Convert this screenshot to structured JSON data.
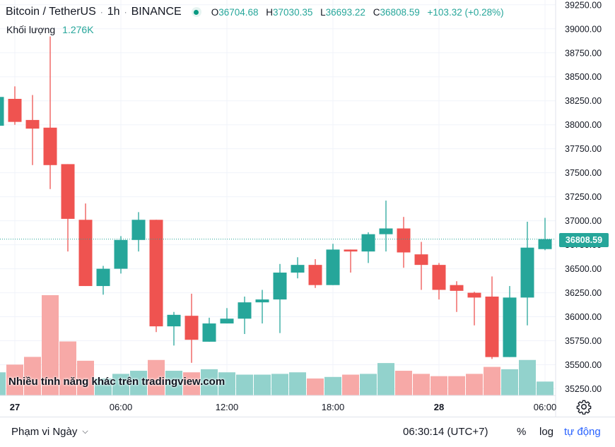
{
  "header": {
    "symbol": "Bitcoin / TetherUS",
    "sep1": "·",
    "interval": "1h",
    "sep2": "·",
    "exchange": "BINANCE",
    "open_key": "O",
    "open": "36704.68",
    "high_key": "H",
    "high": "37030.35",
    "low_key": "L",
    "low": "36693.22",
    "close_key": "C",
    "close": "36808.59",
    "change": "+103.32 (+0.28%)"
  },
  "volume_legend": {
    "label": "Khối lượng",
    "value": "1.276K"
  },
  "watermark": "Nhiều tính năng khác trên tradingview.com",
  "bottom_bar": {
    "range_label": "Phạm vi Ngày",
    "clock": "06:30:14 (UTC+7)",
    "percent_label": "%",
    "log_label": "log",
    "auto_label": "tự động"
  },
  "colors": {
    "up": "#26a69a",
    "down": "#ef5350",
    "up_volume": "#92d2cc",
    "down_volume": "#f7a9a7",
    "accent": "#2962ff"
  },
  "chart_data": {
    "type": "candlestick",
    "title": "",
    "price_axis": {
      "range": [
        35180,
        39300
      ],
      "ticks": [
        35250,
        35500,
        35750,
        36000,
        36250,
        36500,
        36750,
        37000,
        37250,
        37500,
        37750,
        38000,
        38250,
        38500,
        38750,
        39000,
        39250
      ],
      "tick_labels": [
        "35250.00",
        "35500.00",
        "35750.00",
        "36000.00",
        "36250.00",
        "36500.00",
        "36750.00",
        "37000.00",
        "37250.00",
        "37500.00",
        "37750.00",
        "38000.00",
        "38250.00",
        "38500.00",
        "38750.00",
        "39000.00",
        "39250.00"
      ],
      "last_price_label": "36808.59"
    },
    "time_axis": {
      "labels": [
        {
          "label": "27",
          "bar": 1,
          "bold": true
        },
        {
          "label": "06:00",
          "bar": 7,
          "bold": false
        },
        {
          "label": "12:00",
          "bar": 13,
          "bold": false
        },
        {
          "label": "18:00",
          "bar": 19,
          "bold": false
        },
        {
          "label": "28",
          "bar": 25,
          "bold": true
        },
        {
          "label": "06:00",
          "bar": 31,
          "bold": false
        }
      ]
    },
    "first_bar_index": 0,
    "candles": [
      {
        "o": 37990,
        "h": 38290,
        "l": 37990,
        "c": 38290,
        "v": 0.3
      },
      {
        "o": 38270,
        "h": 38400,
        "l": 38000,
        "c": 38030,
        "v": 0.4
      },
      {
        "o": 38050,
        "h": 38310,
        "l": 37580,
        "c": 37960,
        "v": 0.5
      },
      {
        "o": 37970,
        "h": 38920,
        "l": 37330,
        "c": 37580,
        "v": 1.3
      },
      {
        "o": 37590,
        "h": 37590,
        "l": 36680,
        "c": 37020,
        "v": 0.7
      },
      {
        "o": 37010,
        "h": 37180,
        "l": 36320,
        "c": 36320,
        "v": 0.45
      },
      {
        "o": 36320,
        "h": 36530,
        "l": 36230,
        "c": 36500,
        "v": 0.22
      },
      {
        "o": 36500,
        "h": 36840,
        "l": 36450,
        "c": 36800,
        "v": 0.28
      },
      {
        "o": 36800,
        "h": 37090,
        "l": 36680,
        "c": 37010,
        "v": 0.32
      },
      {
        "o": 37010,
        "h": 37010,
        "l": 35840,
        "c": 35900,
        "v": 0.46
      },
      {
        "o": 35900,
        "h": 36050,
        "l": 35700,
        "c": 36020,
        "v": 0.32
      },
      {
        "o": 36010,
        "h": 36240,
        "l": 35520,
        "c": 35760,
        "v": 0.3
      },
      {
        "o": 35740,
        "h": 35990,
        "l": 35740,
        "c": 35930,
        "v": 0.34
      },
      {
        "o": 35930,
        "h": 36090,
        "l": 35930,
        "c": 35980,
        "v": 0.3
      },
      {
        "o": 35980,
        "h": 36210,
        "l": 35820,
        "c": 36150,
        "v": 0.27
      },
      {
        "o": 36150,
        "h": 36280,
        "l": 35930,
        "c": 36180,
        "v": 0.27
      },
      {
        "o": 36180,
        "h": 36550,
        "l": 35830,
        "c": 36460,
        "v": 0.28
      },
      {
        "o": 36460,
        "h": 36620,
        "l": 36400,
        "c": 36540,
        "v": 0.3
      },
      {
        "o": 36540,
        "h": 36600,
        "l": 36300,
        "c": 36330,
        "v": 0.22
      },
      {
        "o": 36330,
        "h": 36760,
        "l": 36330,
        "c": 36700,
        "v": 0.24
      },
      {
        "o": 36700,
        "h": 36700,
        "l": 36460,
        "c": 36680,
        "v": 0.27
      },
      {
        "o": 36680,
        "h": 36880,
        "l": 36560,
        "c": 36860,
        "v": 0.28
      },
      {
        "o": 36860,
        "h": 37210,
        "l": 36680,
        "c": 36920,
        "v": 0.42
      },
      {
        "o": 36920,
        "h": 37040,
        "l": 36510,
        "c": 36670,
        "v": 0.32
      },
      {
        "o": 36650,
        "h": 36780,
        "l": 36280,
        "c": 36540,
        "v": 0.28
      },
      {
        "o": 36540,
        "h": 36560,
        "l": 36180,
        "c": 36280,
        "v": 0.25
      },
      {
        "o": 36330,
        "h": 36370,
        "l": 36050,
        "c": 36270,
        "v": 0.25
      },
      {
        "o": 36250,
        "h": 36260,
        "l": 35910,
        "c": 36200,
        "v": 0.28
      },
      {
        "o": 36210,
        "h": 36420,
        "l": 35560,
        "c": 35580,
        "v": 0.37
      },
      {
        "o": 35580,
        "h": 36320,
        "l": 35580,
        "c": 36200,
        "v": 0.34
      },
      {
        "o": 36200,
        "h": 36990,
        "l": 35910,
        "c": 36720,
        "v": 0.46
      },
      {
        "o": 36704.68,
        "h": 37030.35,
        "l": 36693.22,
        "c": 36808.59,
        "v": 0.18
      }
    ]
  }
}
